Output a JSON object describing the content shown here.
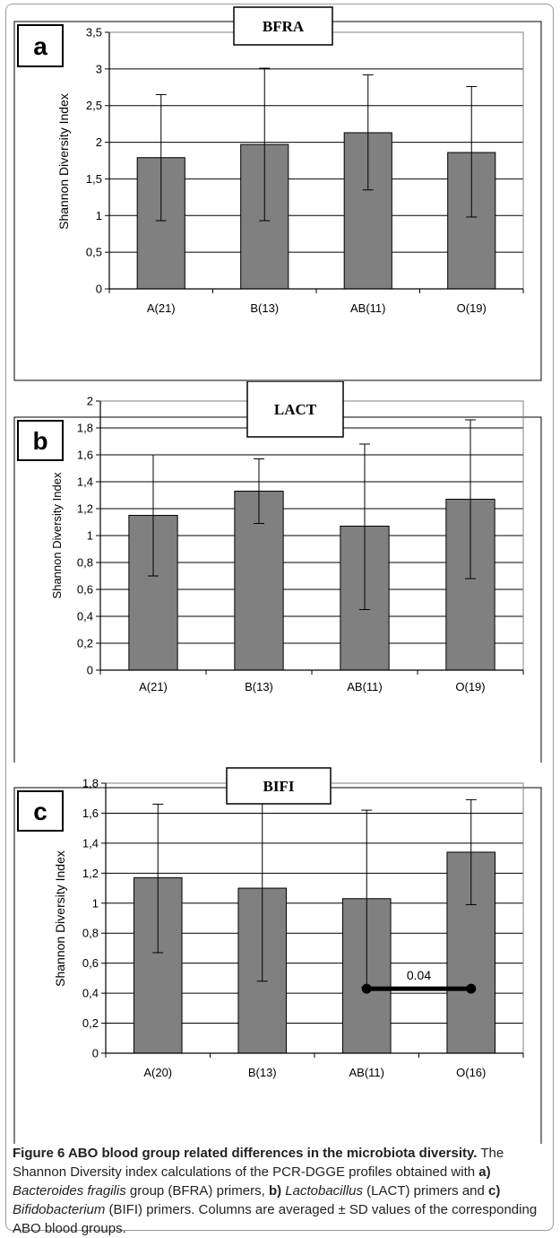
{
  "chart_data": [
    {
      "type": "bar",
      "panel_letter": "a",
      "title": "BFRA",
      "ylabel": "Shannon Diversity Index",
      "categories": [
        "A(21)",
        "B(13)",
        "AB(11)",
        "O(19)"
      ],
      "values": [
        1.79,
        1.97,
        2.13,
        1.86
      ],
      "error_low": [
        0.93,
        0.93,
        1.35,
        0.98
      ],
      "error_high": [
        2.65,
        3.01,
        2.92,
        2.76
      ],
      "ylim": [
        0,
        3.5
      ],
      "yticks": [
        "0",
        "0,5",
        "1",
        "1,5",
        "2",
        "2,5",
        "3",
        "3,5"
      ],
      "grid": true,
      "bar_color": "#808080"
    },
    {
      "type": "bar",
      "panel_letter": "b",
      "title": "LACT",
      "ylabel": "Shannon Diversity Index",
      "categories": [
        "A(21)",
        "B(13)",
        "AB(11)",
        "O(19)"
      ],
      "values": [
        1.15,
        1.33,
        1.07,
        1.27
      ],
      "error_low": [
        0.7,
        1.09,
        0.45,
        0.68
      ],
      "error_high": [
        1.6,
        1.57,
        1.68,
        1.86
      ],
      "ylim": [
        0,
        2
      ],
      "yticks": [
        "0",
        "0,2",
        "0,4",
        "0,6",
        "0,8",
        "1",
        "1,2",
        "1,4",
        "1,6",
        "1,8",
        "2"
      ],
      "grid": true,
      "bar_color": "#808080"
    },
    {
      "type": "bar",
      "panel_letter": "c",
      "title": "BIFI",
      "ylabel": "Shannon Diversity Index",
      "categories": [
        "A(20)",
        "B(13)",
        "AB(11)",
        "O(16)"
      ],
      "values": [
        1.17,
        1.1,
        1.03,
        1.34
      ],
      "error_low": [
        0.67,
        0.48,
        0.44,
        0.99
      ],
      "error_high": [
        1.66,
        1.71,
        1.62,
        1.69
      ],
      "ylim": [
        0,
        1.8
      ],
      "yticks": [
        "0",
        "0,2",
        "0,4",
        "0,6",
        "0,8",
        "1",
        "1,2",
        "1,4",
        "1,6",
        "1,8"
      ],
      "grid": true,
      "bar_color": "#808080",
      "annotation": {
        "text": "0.04",
        "from_category": "AB(11)",
        "to_category": "O(16)",
        "y": 0.43
      }
    }
  ],
  "caption": {
    "title": "Figure 6 ABO blood group related differences in the microbiota diversity.",
    "t1": " The Shannon Diversity index calculations of the PCR-DGGE profiles obtained with ",
    "a_label": "a)",
    "a_species": "Bacteroides fragilis",
    "t2": " group (BFRA) primers, ",
    "b_label": "b)",
    "b_species": "Lactobacillus",
    "t3": " (LACT) primers and ",
    "c_label": "c)",
    "c_species": "Bifidobacterium",
    "t4": " (BIFI) primers. Columns are averaged ± SD values of the corresponding ABO blood groups."
  }
}
